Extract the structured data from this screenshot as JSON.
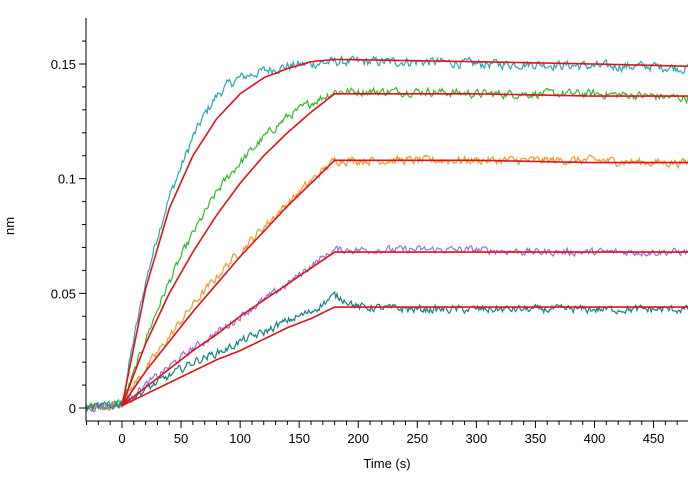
{
  "chart_data": {
    "type": "line",
    "title": "",
    "xlabel": "Time (s)",
    "ylabel": "nm",
    "xlim": [
      -30,
      480
    ],
    "ylim": [
      -0.003,
      0.17
    ],
    "x_ticks": [
      0,
      50,
      100,
      150,
      200,
      250,
      300,
      350,
      400,
      450
    ],
    "x_tick_labels": [
      "0",
      "50",
      "100",
      "150",
      "200",
      "250",
      "300",
      "350",
      "400",
      "450"
    ],
    "y_ticks": [
      0,
      0.05,
      0.1,
      0.15
    ],
    "y_tick_labels": [
      "0",
      "0.05",
      "0.1",
      "0.15"
    ],
    "grid": false,
    "legend": "none",
    "association_end_s": 180,
    "series": [
      {
        "color": "#2aa7b3",
        "noise": 0.0018,
        "data": [
          [
            -30,
            0
          ],
          [
            -10,
            0.001
          ],
          [
            0,
            0.002
          ],
          [
            10,
            0.03
          ],
          [
            20,
            0.055
          ],
          [
            30,
            0.075
          ],
          [
            40,
            0.092
          ],
          [
            50,
            0.105
          ],
          [
            60,
            0.118
          ],
          [
            70,
            0.128
          ],
          [
            80,
            0.136
          ],
          [
            90,
            0.141
          ],
          [
            100,
            0.144
          ],
          [
            120,
            0.147
          ],
          [
            140,
            0.149
          ],
          [
            160,
            0.15
          ],
          [
            180,
            0.151
          ],
          [
            220,
            0.151
          ],
          [
            260,
            0.151
          ],
          [
            300,
            0.15
          ],
          [
            350,
            0.15
          ],
          [
            400,
            0.149
          ],
          [
            450,
            0.149
          ],
          [
            480,
            0.148
          ]
        ]
      },
      {
        "color": "#35b830",
        "noise": 0.0016,
        "data": [
          [
            -30,
            0
          ],
          [
            -10,
            0.001
          ],
          [
            0,
            0.002
          ],
          [
            10,
            0.015
          ],
          [
            20,
            0.03
          ],
          [
            30,
            0.043
          ],
          [
            40,
            0.055
          ],
          [
            50,
            0.066
          ],
          [
            60,
            0.076
          ],
          [
            70,
            0.085
          ],
          [
            80,
            0.094
          ],
          [
            90,
            0.101
          ],
          [
            100,
            0.107
          ],
          [
            120,
            0.118
          ],
          [
            140,
            0.127
          ],
          [
            160,
            0.133
          ],
          [
            180,
            0.138
          ],
          [
            220,
            0.138
          ],
          [
            260,
            0.138
          ],
          [
            300,
            0.137
          ],
          [
            350,
            0.137
          ],
          [
            400,
            0.137
          ],
          [
            450,
            0.136
          ],
          [
            480,
            0.135
          ]
        ]
      },
      {
        "color": "#f39a2a",
        "noise": 0.0016,
        "data": [
          [
            -30,
            0
          ],
          [
            -10,
            0.001
          ],
          [
            0,
            0.002
          ],
          [
            10,
            0.01
          ],
          [
            20,
            0.017
          ],
          [
            30,
            0.024
          ],
          [
            40,
            0.031
          ],
          [
            50,
            0.038
          ],
          [
            60,
            0.045
          ],
          [
            70,
            0.051
          ],
          [
            80,
            0.057
          ],
          [
            90,
            0.063
          ],
          [
            100,
            0.068
          ],
          [
            120,
            0.079
          ],
          [
            140,
            0.089
          ],
          [
            160,
            0.099
          ],
          [
            180,
            0.108
          ],
          [
            220,
            0.108
          ],
          [
            260,
            0.108
          ],
          [
            300,
            0.108
          ],
          [
            350,
            0.108
          ],
          [
            400,
            0.108
          ],
          [
            450,
            0.107
          ],
          [
            480,
            0.107
          ]
        ]
      },
      {
        "color": "#9a71e0",
        "noise": 0.0014,
        "data": [
          [
            -30,
            0
          ],
          [
            -10,
            0.001
          ],
          [
            0,
            0.002
          ],
          [
            10,
            0.006
          ],
          [
            20,
            0.01
          ],
          [
            30,
            0.014
          ],
          [
            40,
            0.018
          ],
          [
            50,
            0.022
          ],
          [
            60,
            0.026
          ],
          [
            70,
            0.029
          ],
          [
            80,
            0.033
          ],
          [
            90,
            0.036
          ],
          [
            100,
            0.04
          ],
          [
            120,
            0.047
          ],
          [
            140,
            0.054
          ],
          [
            160,
            0.062
          ],
          [
            180,
            0.069
          ],
          [
            220,
            0.069
          ],
          [
            260,
            0.069
          ],
          [
            300,
            0.069
          ],
          [
            350,
            0.068
          ],
          [
            400,
            0.068
          ],
          [
            450,
            0.068
          ],
          [
            480,
            0.068
          ]
        ]
      },
      {
        "color": "#1c7f86",
        "noise": 0.0015,
        "data": [
          [
            -30,
            0
          ],
          [
            -10,
            0.001
          ],
          [
            0,
            0.002
          ],
          [
            10,
            0.005
          ],
          [
            20,
            0.008
          ],
          [
            30,
            0.011
          ],
          [
            40,
            0.014
          ],
          [
            50,
            0.017
          ],
          [
            60,
            0.02
          ],
          [
            70,
            0.022
          ],
          [
            80,
            0.024
          ],
          [
            90,
            0.026
          ],
          [
            100,
            0.029
          ],
          [
            120,
            0.033
          ],
          [
            140,
            0.038
          ],
          [
            160,
            0.042
          ],
          [
            180,
            0.049
          ],
          [
            190,
            0.047
          ],
          [
            200,
            0.044
          ],
          [
            250,
            0.043
          ],
          [
            300,
            0.043
          ],
          [
            350,
            0.043
          ],
          [
            400,
            0.043
          ],
          [
            450,
            0.043
          ],
          [
            480,
            0.043
          ]
        ]
      }
    ],
    "fits": [
      {
        "color": "#e0121b",
        "data": [
          [
            0,
            0.001
          ],
          [
            20,
            0.052
          ],
          [
            40,
            0.087
          ],
          [
            60,
            0.11
          ],
          [
            80,
            0.126
          ],
          [
            100,
            0.137
          ],
          [
            120,
            0.144
          ],
          [
            140,
            0.148
          ],
          [
            160,
            0.151
          ],
          [
            180,
            0.152
          ],
          [
            300,
            0.151
          ],
          [
            400,
            0.15
          ],
          [
            480,
            0.149
          ]
        ]
      },
      {
        "color": "#e0121b",
        "data": [
          [
            0,
            0.001
          ],
          [
            20,
            0.028
          ],
          [
            40,
            0.05
          ],
          [
            60,
            0.068
          ],
          [
            80,
            0.084
          ],
          [
            100,
            0.098
          ],
          [
            120,
            0.11
          ],
          [
            140,
            0.12
          ],
          [
            160,
            0.129
          ],
          [
            180,
            0.137
          ],
          [
            300,
            0.137
          ],
          [
            400,
            0.136
          ],
          [
            480,
            0.136
          ]
        ]
      },
      {
        "color": "#e0121b",
        "data": [
          [
            0,
            0.001
          ],
          [
            20,
            0.016
          ],
          [
            40,
            0.029
          ],
          [
            60,
            0.042
          ],
          [
            80,
            0.054
          ],
          [
            100,
            0.066
          ],
          [
            120,
            0.077
          ],
          [
            140,
            0.088
          ],
          [
            160,
            0.098
          ],
          [
            180,
            0.108
          ],
          [
            300,
            0.108
          ],
          [
            400,
            0.107
          ],
          [
            480,
            0.107
          ]
        ]
      },
      {
        "color": "#e0121b",
        "data": [
          [
            0,
            0.001
          ],
          [
            20,
            0.009
          ],
          [
            40,
            0.017
          ],
          [
            60,
            0.025
          ],
          [
            80,
            0.032
          ],
          [
            100,
            0.04
          ],
          [
            120,
            0.047
          ],
          [
            140,
            0.054
          ],
          [
            160,
            0.061
          ],
          [
            180,
            0.068
          ],
          [
            300,
            0.068
          ],
          [
            400,
            0.068
          ],
          [
            480,
            0.068
          ]
        ]
      },
      {
        "color": "#e0121b",
        "data": [
          [
            0,
            0.001
          ],
          [
            20,
            0.006
          ],
          [
            40,
            0.011
          ],
          [
            60,
            0.016
          ],
          [
            80,
            0.021
          ],
          [
            100,
            0.025
          ],
          [
            120,
            0.03
          ],
          [
            140,
            0.035
          ],
          [
            160,
            0.039
          ],
          [
            180,
            0.044
          ],
          [
            300,
            0.044
          ],
          [
            400,
            0.044
          ],
          [
            480,
            0.044
          ]
        ]
      }
    ]
  }
}
